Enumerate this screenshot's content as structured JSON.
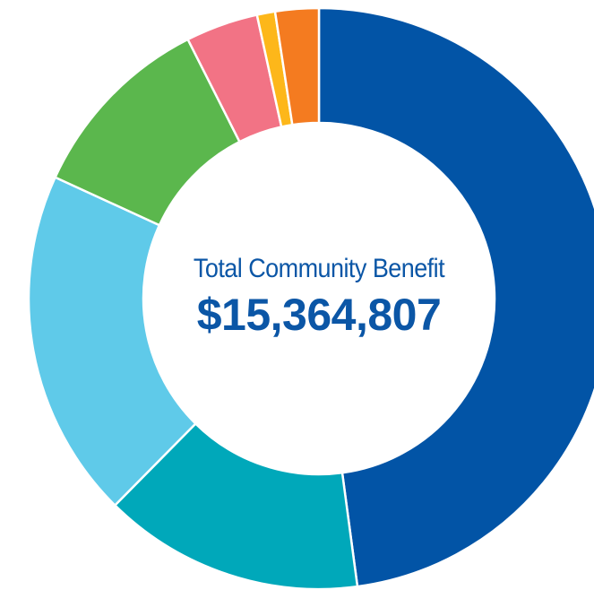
{
  "chart_data": {
    "type": "pie",
    "donut": true,
    "center_title": "Total Community Benefit",
    "center_value": "$15,364,807",
    "total": 15364807,
    "slices": [
      {
        "value": 47.5,
        "color": "#0254a6"
      },
      {
        "value": 14.4,
        "color": "#00a8ba"
      },
      {
        "value": 19.3,
        "color": "#5fcae9"
      },
      {
        "value": 10.6,
        "color": "#5bb74d"
      },
      {
        "value": 4.0,
        "color": "#f27385"
      },
      {
        "value": 1.0,
        "color": "#fdb71a"
      },
      {
        "value": 2.4,
        "color": "#f47b20"
      }
    ]
  }
}
